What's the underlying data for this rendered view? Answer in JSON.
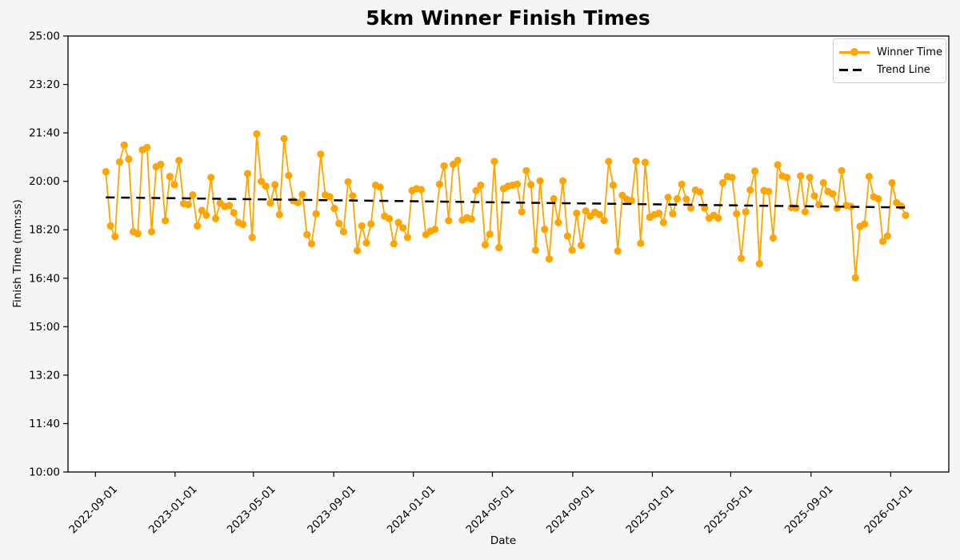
{
  "figure": {
    "background": "#f5f5f5",
    "plot_background": "#ffffff",
    "spine_color": "#000000"
  },
  "chart_data": {
    "type": "line",
    "title": "5km Winner Finish Times",
    "xlabel": "Date",
    "ylabel": "Finish Time (mm:ss)",
    "grid": false,
    "legend_position": "top-right-inside",
    "ylim_seconds": [
      600,
      1500
    ],
    "yticks": [
      {
        "value": 600,
        "label": "10:00"
      },
      {
        "value": 700,
        "label": "11:40"
      },
      {
        "value": 800,
        "label": "13:20"
      },
      {
        "value": 900,
        "label": "15:00"
      },
      {
        "value": 1000,
        "label": "16:40"
      },
      {
        "value": 1100,
        "label": "18:20"
      },
      {
        "value": 1200,
        "label": "20:00"
      },
      {
        "value": 1300,
        "label": "21:40"
      },
      {
        "value": 1400,
        "label": "23:20"
      },
      {
        "value": 1500,
        "label": "25:00"
      }
    ],
    "xlim_dates": [
      "2022-07-21",
      "2026-03-31"
    ],
    "xticks": [
      {
        "date": "2022-09-01",
        "label": "2022-09-01"
      },
      {
        "date": "2023-01-01",
        "label": "2023-01-01"
      },
      {
        "date": "2023-05-01",
        "label": "2023-05-01"
      },
      {
        "date": "2023-09-01",
        "label": "2023-09-01"
      },
      {
        "date": "2024-01-01",
        "label": "2024-01-01"
      },
      {
        "date": "2024-05-01",
        "label": "2024-05-01"
      },
      {
        "date": "2024-09-01",
        "label": "2024-09-01"
      },
      {
        "date": "2025-01-01",
        "label": "2025-01-01"
      },
      {
        "date": "2025-05-01",
        "label": "2025-05-01"
      },
      {
        "date": "2025-09-01",
        "label": "2025-09-01"
      },
      {
        "date": "2026-01-01",
        "label": "2026-01-01"
      }
    ],
    "series": [
      {
        "name": "Winner Time",
        "color": "#FFA500",
        "marker": "circle",
        "marker_radius": 4.6,
        "line_width": 1.8,
        "unit": "seconds (mm:ss on axis)",
        "start_date": "2022-09-17",
        "interval_days": 7,
        "values": [
          1220,
          1108,
          1086,
          1240,
          1275,
          1246,
          1096,
          1092,
          1265,
          1270,
          1096,
          1230,
          1235,
          1119,
          1210,
          1193,
          1243,
          1154,
          1152,
          1172,
          1108,
          1140,
          1130,
          1208,
          1123,
          1155,
          1148,
          1150,
          1135,
          1115,
          1111,
          1216,
          1084,
          1298,
          1200,
          1190,
          1155,
          1193,
          1131,
          1288,
          1212,
          1160,
          1156,
          1173,
          1090,
          1071,
          1133,
          1256,
          1172,
          1168,
          1144,
          1113,
          1096,
          1199,
          1170,
          1057,
          1108,
          1073,
          1112,
          1192,
          1188,
          1128,
          1123,
          1071,
          1115,
          1104,
          1084,
          1181,
          1185,
          1183,
          1090,
          1097,
          1101,
          1194,
          1232,
          1119,
          1235,
          1243,
          1120,
          1125,
          1122,
          1181,
          1192,
          1069,
          1091,
          1241,
          1063,
          1185,
          1190,
          1192,
          1194,
          1137,
          1222,
          1193,
          1058,
          1201,
          1101,
          1040,
          1164,
          1115,
          1201,
          1087,
          1058,
          1134,
          1068,
          1139,
          1128,
          1136,
          1131,
          1119,
          1241,
          1192,
          1056,
          1171,
          1163,
          1160,
          1242,
          1072,
          1239,
          1126,
          1131,
          1134,
          1115,
          1167,
          1133,
          1164,
          1194,
          1163,
          1145,
          1182,
          1178,
          1145,
          1124,
          1130,
          1124,
          1197,
          1210,
          1208,
          1133,
          1041,
          1137,
          1182,
          1221,
          1030,
          1181,
          1179,
          1083,
          1234,
          1211,
          1208,
          1146,
          1145,
          1211,
          1137,
          1208,
          1170,
          1152,
          1197,
          1179,
          1174,
          1145,
          1222,
          1150,
          1148,
          1001,
          1107,
          1112,
          1210,
          1168,
          1164,
          1076,
          1087,
          1197,
          1156,
          1149,
          1130
        ]
      },
      {
        "name": "Trend Line",
        "color": "#000000",
        "style": "dashed",
        "line_width": 2.5,
        "start_date": "2022-09-17",
        "end_date": "2026-01-24",
        "start_value_sec": 1167,
        "end_value_sec": 1146
      }
    ]
  }
}
